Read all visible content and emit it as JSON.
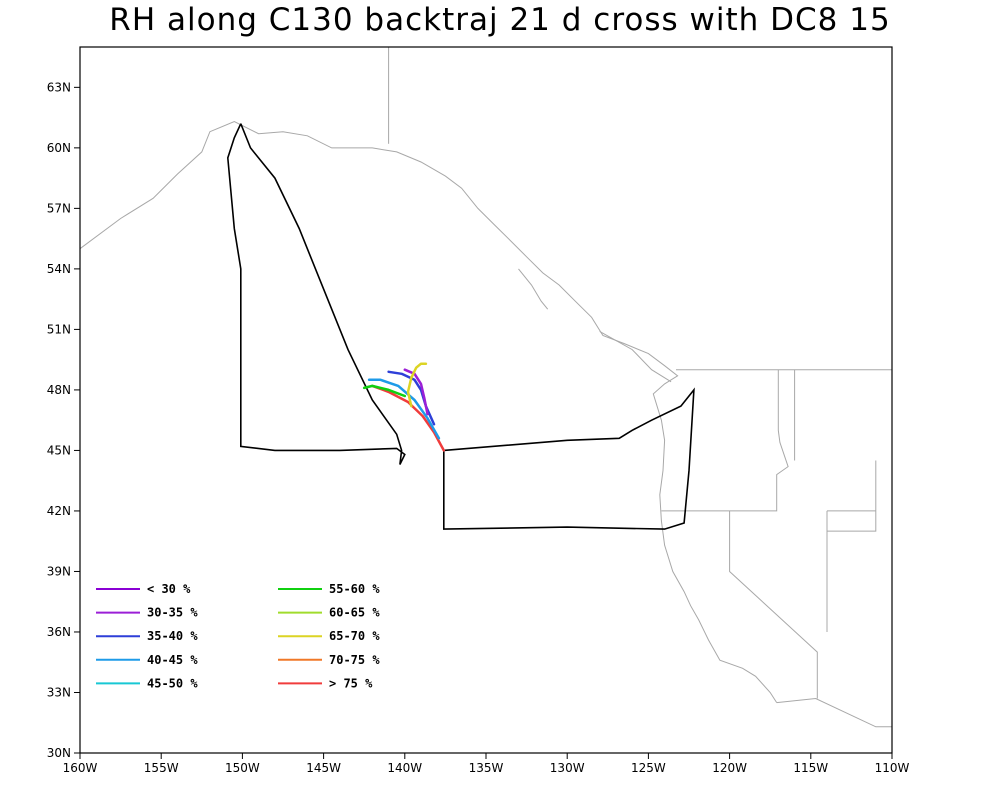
{
  "title": "RH along C130 backtraj 21 d cross with DC8 15",
  "axes": {
    "lon_min": -160,
    "lon_max": -110,
    "lat_min": 30,
    "lat_max": 65,
    "x_ticks": [
      {
        "value": -160,
        "label": "160W"
      },
      {
        "value": -155,
        "label": "155W"
      },
      {
        "value": -150,
        "label": "150W"
      },
      {
        "value": -145,
        "label": "145W"
      },
      {
        "value": -140,
        "label": "140W"
      },
      {
        "value": -135,
        "label": "135W"
      },
      {
        "value": -130,
        "label": "130W"
      },
      {
        "value": -125,
        "label": "125W"
      },
      {
        "value": -120,
        "label": "120W"
      },
      {
        "value": -115,
        "label": "115W"
      },
      {
        "value": -110,
        "label": "110W"
      }
    ],
    "y_ticks": [
      {
        "value": 30,
        "label": "30N"
      },
      {
        "value": 33,
        "label": "33N"
      },
      {
        "value": 36,
        "label": "36N"
      },
      {
        "value": 39,
        "label": "39N"
      },
      {
        "value": 42,
        "label": "42N"
      },
      {
        "value": 45,
        "label": "45N"
      },
      {
        "value": 48,
        "label": "48N"
      },
      {
        "value": 51,
        "label": "51N"
      },
      {
        "value": 54,
        "label": "54N"
      },
      {
        "value": 57,
        "label": "57N"
      },
      {
        "value": 60,
        "label": "60N"
      },
      {
        "value": 63,
        "label": "63N"
      }
    ]
  },
  "legend": [
    {
      "label": "< 30 %",
      "color": "#8a00d4"
    },
    {
      "label": "30-35 %",
      "color": "#9b1fd6"
    },
    {
      "label": "35-40 %",
      "color": "#2e3fd8"
    },
    {
      "label": "40-45 %",
      "color": "#1e9be8"
    },
    {
      "label": "45-50 %",
      "color": "#18c8d4"
    },
    {
      "label": "55-60 %",
      "color": "#10d010"
    },
    {
      "label": "60-65 %",
      "color": "#a0dc2c"
    },
    {
      "label": "65-70 %",
      "color": "#dcd424"
    },
    {
      "label": "70-75 %",
      "color": "#f07828"
    },
    {
      "label": "> 75 %",
      "color": "#f03c3c"
    }
  ],
  "colors": {
    "coastline": "#a8a8a8",
    "flight_track": "#000000"
  },
  "flight_track": [
    [
      -150.1,
      61.2
    ],
    [
      -149.5,
      60.0
    ],
    [
      -148.0,
      58.5
    ],
    [
      -146.5,
      56.0
    ],
    [
      -145.0,
      53.0
    ],
    [
      -143.5,
      50.0
    ],
    [
      -142.0,
      47.5
    ],
    [
      -140.5,
      45.8
    ],
    [
      -140.2,
      45.0
    ],
    [
      -140.3,
      44.3
    ],
    [
      -140.0,
      44.8
    ],
    [
      -140.5,
      45.1
    ],
    [
      -144.0,
      45.0
    ],
    [
      -148.0,
      45.0
    ],
    [
      -150.1,
      45.2
    ],
    [
      -150.1,
      54.0
    ],
    [
      -150.5,
      56.0
    ],
    [
      -150.9,
      59.5
    ],
    [
      -150.5,
      60.5
    ],
    [
      -150.1,
      61.2
    ]
  ],
  "flight_track_2": [
    [
      -137.6,
      45.0
    ],
    [
      -130.0,
      45.5
    ],
    [
      -126.8,
      45.6
    ],
    [
      -126.0,
      46.0
    ],
    [
      -124.8,
      46.5
    ],
    [
      -123.0,
      47.2
    ],
    [
      -122.2,
      48.0
    ],
    [
      -122.5,
      44.0
    ],
    [
      -122.8,
      41.4
    ],
    [
      -124.0,
      41.1
    ],
    [
      -130.0,
      41.2
    ],
    [
      -137.6,
      41.1
    ],
    [
      -137.6,
      45.0
    ]
  ],
  "trajectories": [
    {
      "color": "#f03c3c",
      "points": [
        [
          -137.6,
          45.0
        ],
        [
          -138.2,
          45.9
        ],
        [
          -138.9,
          46.7
        ],
        [
          -139.8,
          47.4
        ],
        [
          -141.0,
          47.9
        ],
        [
          -142.0,
          48.2
        ]
      ]
    },
    {
      "color": "#1e9be8",
      "points": [
        [
          -137.9,
          45.6
        ],
        [
          -138.6,
          46.6
        ],
        [
          -139.4,
          47.5
        ],
        [
          -140.4,
          48.2
        ],
        [
          -141.5,
          48.5
        ],
        [
          -142.2,
          48.5
        ]
      ]
    },
    {
      "color": "#2e3fd8",
      "points": [
        [
          -138.2,
          46.3
        ],
        [
          -138.7,
          47.2
        ],
        [
          -139.0,
          48.0
        ],
        [
          -139.4,
          48.5
        ],
        [
          -140.2,
          48.8
        ],
        [
          -141.0,
          48.9
        ]
      ]
    },
    {
      "color": "#9b1fd6",
      "points": [
        [
          -138.6,
          46.8
        ],
        [
          -138.8,
          47.6
        ],
        [
          -139.0,
          48.3
        ],
        [
          -139.4,
          48.8
        ],
        [
          -140.0,
          49.0
        ]
      ]
    },
    {
      "color": "#dcd424",
      "points": [
        [
          -139.6,
          47.2
        ],
        [
          -139.8,
          47.9
        ],
        [
          -139.6,
          48.6
        ],
        [
          -139.3,
          49.1
        ],
        [
          -139.0,
          49.3
        ],
        [
          -138.7,
          49.3
        ]
      ]
    },
    {
      "color": "#10d010",
      "points": [
        [
          -140.0,
          47.7
        ],
        [
          -141.0,
          48.0
        ],
        [
          -142.0,
          48.2
        ],
        [
          -142.5,
          48.1
        ]
      ]
    }
  ],
  "coastline": [
    [
      [
        -160,
        55.0
      ],
      [
        -157.5,
        56.5
      ],
      [
        -155.5,
        57.5
      ],
      [
        -154.0,
        58.7
      ],
      [
        -152.5,
        59.8
      ],
      [
        -152.0,
        60.8
      ],
      [
        -150.5,
        61.3
      ],
      [
        -149.0,
        60.7
      ],
      [
        -147.5,
        60.8
      ],
      [
        -146.0,
        60.6
      ],
      [
        -144.5,
        60.0
      ],
      [
        -142.0,
        60.0
      ],
      [
        -140.5,
        59.8
      ],
      [
        -139.0,
        59.3
      ],
      [
        -137.5,
        58.6
      ],
      [
        -136.5,
        58.0
      ],
      [
        -135.5,
        57.0
      ],
      [
        -134.5,
        56.2
      ],
      [
        -133.5,
        55.4
      ],
      [
        -132.5,
        54.6
      ],
      [
        -131.5,
        53.8
      ],
      [
        -130.5,
        53.2
      ],
      [
        -129.5,
        52.4
      ],
      [
        -128.5,
        51.6
      ],
      [
        -127.8,
        50.7
      ],
      [
        -126.5,
        50.3
      ],
      [
        -125.0,
        49.8
      ],
      [
        -124.0,
        49.2
      ],
      [
        -123.2,
        48.7
      ],
      [
        -124.0,
        48.3
      ],
      [
        -124.7,
        47.8
      ],
      [
        -124.2,
        46.5
      ],
      [
        -124.0,
        45.5
      ],
      [
        -124.1,
        44.0
      ],
      [
        -124.3,
        42.8
      ],
      [
        -124.2,
        41.5
      ],
      [
        -124.0,
        40.3
      ],
      [
        -123.5,
        39.0
      ],
      [
        -122.8,
        38.0
      ],
      [
        -122.4,
        37.3
      ],
      [
        -121.9,
        36.6
      ],
      [
        -121.3,
        35.6
      ],
      [
        -120.6,
        34.6
      ],
      [
        -119.2,
        34.2
      ],
      [
        -118.4,
        33.8
      ],
      [
        -117.5,
        33.0
      ],
      [
        -117.1,
        32.5
      ]
    ],
    [
      [
        -133.0,
        54.0
      ],
      [
        -132.2,
        53.2
      ],
      [
        -131.6,
        52.4
      ],
      [
        -131.2,
        52.0
      ]
    ],
    [
      [
        -128.0,
        50.9
      ],
      [
        -126.0,
        50.0
      ],
      [
        -124.8,
        49.0
      ],
      [
        -123.6,
        48.4
      ]
    ]
  ],
  "borders": [
    [
      [
        -141.0,
        65
      ],
      [
        -141.0,
        60.2
      ]
    ],
    [
      [
        -123.3,
        49.0
      ],
      [
        -110,
        49.0
      ]
    ],
    [
      [
        -117.0,
        49.0
      ],
      [
        -117.0,
        46.0
      ],
      [
        -116.9,
        45.4
      ],
      [
        -116.4,
        44.2
      ],
      [
        -117.1,
        43.8
      ],
      [
        -117.1,
        42.0
      ],
      [
        -124.2,
        42.0
      ]
    ],
    [
      [
        -120.0,
        42.0
      ],
      [
        -120.0,
        39.0
      ],
      [
        -114.6,
        35.0
      ],
      [
        -114.6,
        32.7
      ]
    ],
    [
      [
        -117.1,
        32.5
      ],
      [
        -114.7,
        32.7
      ],
      [
        -111.0,
        31.3
      ],
      [
        -110,
        31.3
      ]
    ],
    [
      [
        -116.0,
        49.0
      ],
      [
        -116.0,
        44.5
      ]
    ],
    [
      [
        -114.0,
        42.0
      ],
      [
        -114.0,
        36.0
      ]
    ],
    [
      [
        -111.0,
        44.5
      ],
      [
        -111.0,
        41.0
      ],
      [
        -114.0,
        41.0
      ]
    ],
    [
      [
        -111.0,
        42.0
      ],
      [
        -114.0,
        42.0
      ]
    ]
  ]
}
